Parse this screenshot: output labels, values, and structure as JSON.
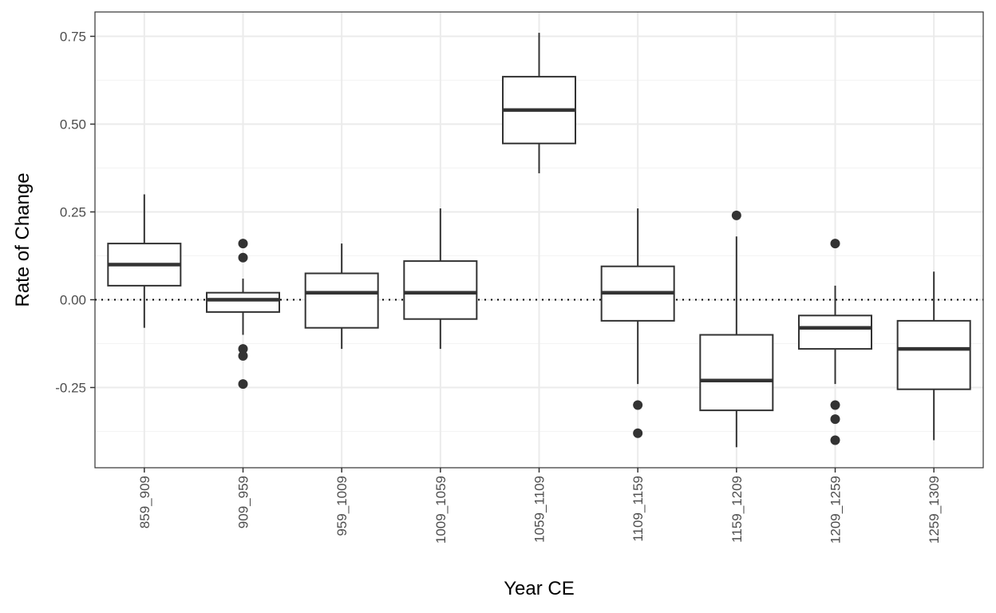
{
  "chart_data": {
    "type": "boxplot",
    "xlabel": "Year CE",
    "ylabel": "Rate of Change",
    "ylim": [
      -0.4,
      0.8
    ],
    "yticks": [
      0.75,
      0.5,
      0.25,
      0.0,
      -0.25
    ],
    "ytick_labels": [
      "0.75",
      "0.50",
      "0.25",
      "0.00",
      "-0.25"
    ],
    "reference_line": {
      "y": 0.0,
      "style": "dotted"
    },
    "grid": true,
    "theme": "black-and-white",
    "colors": {
      "box": "#333333",
      "grid_major": "#ebebeb",
      "grid_minor": "#f3f3f3",
      "panel_border": "#333333",
      "tick_text": "#4d4d4d"
    },
    "categories": [
      "859_909",
      "909_959",
      "959_1009",
      "1009_1059",
      "1059_1109",
      "1109_1159",
      "1159_1209",
      "1209_1259",
      "1259_1309"
    ],
    "boxes": [
      {
        "label": "859_909",
        "whisker_low": -0.08,
        "q1": 0.04,
        "median": 0.1,
        "q3": 0.16,
        "whisker_high": 0.3,
        "outliers": []
      },
      {
        "label": "909_959",
        "whisker_low": -0.1,
        "q1": -0.035,
        "median": 0.0,
        "q3": 0.02,
        "whisker_high": 0.06,
        "outliers": [
          0.16,
          0.12,
          -0.14,
          -0.16,
          -0.24
        ]
      },
      {
        "label": "959_1009",
        "whisker_low": -0.14,
        "q1": -0.08,
        "median": 0.02,
        "q3": 0.075,
        "whisker_high": 0.16,
        "outliers": []
      },
      {
        "label": "1009_1059",
        "whisker_low": -0.14,
        "q1": -0.055,
        "median": 0.02,
        "q3": 0.11,
        "whisker_high": 0.26,
        "outliers": []
      },
      {
        "label": "1059_1109",
        "whisker_low": 0.36,
        "q1": 0.445,
        "median": 0.54,
        "q3": 0.635,
        "whisker_high": 0.76,
        "outliers": []
      },
      {
        "label": "1109_1159",
        "whisker_low": -0.24,
        "q1": -0.06,
        "median": 0.02,
        "q3": 0.095,
        "whisker_high": 0.26,
        "outliers": [
          -0.3,
          -0.38
        ]
      },
      {
        "label": "1159_1209",
        "whisker_low": -0.42,
        "q1": -0.315,
        "median": -0.23,
        "q3": -0.1,
        "whisker_high": 0.18,
        "outliers": [
          0.24
        ]
      },
      {
        "label": "1209_1259",
        "whisker_low": -0.24,
        "q1": -0.14,
        "median": -0.08,
        "q3": -0.045,
        "whisker_high": 0.04,
        "outliers": [
          0.16,
          -0.3,
          -0.34,
          -0.4
        ]
      },
      {
        "label": "1259_1309",
        "whisker_low": -0.4,
        "q1": -0.255,
        "median": -0.14,
        "q3": -0.06,
        "whisker_high": 0.08,
        "outliers": []
      }
    ]
  }
}
